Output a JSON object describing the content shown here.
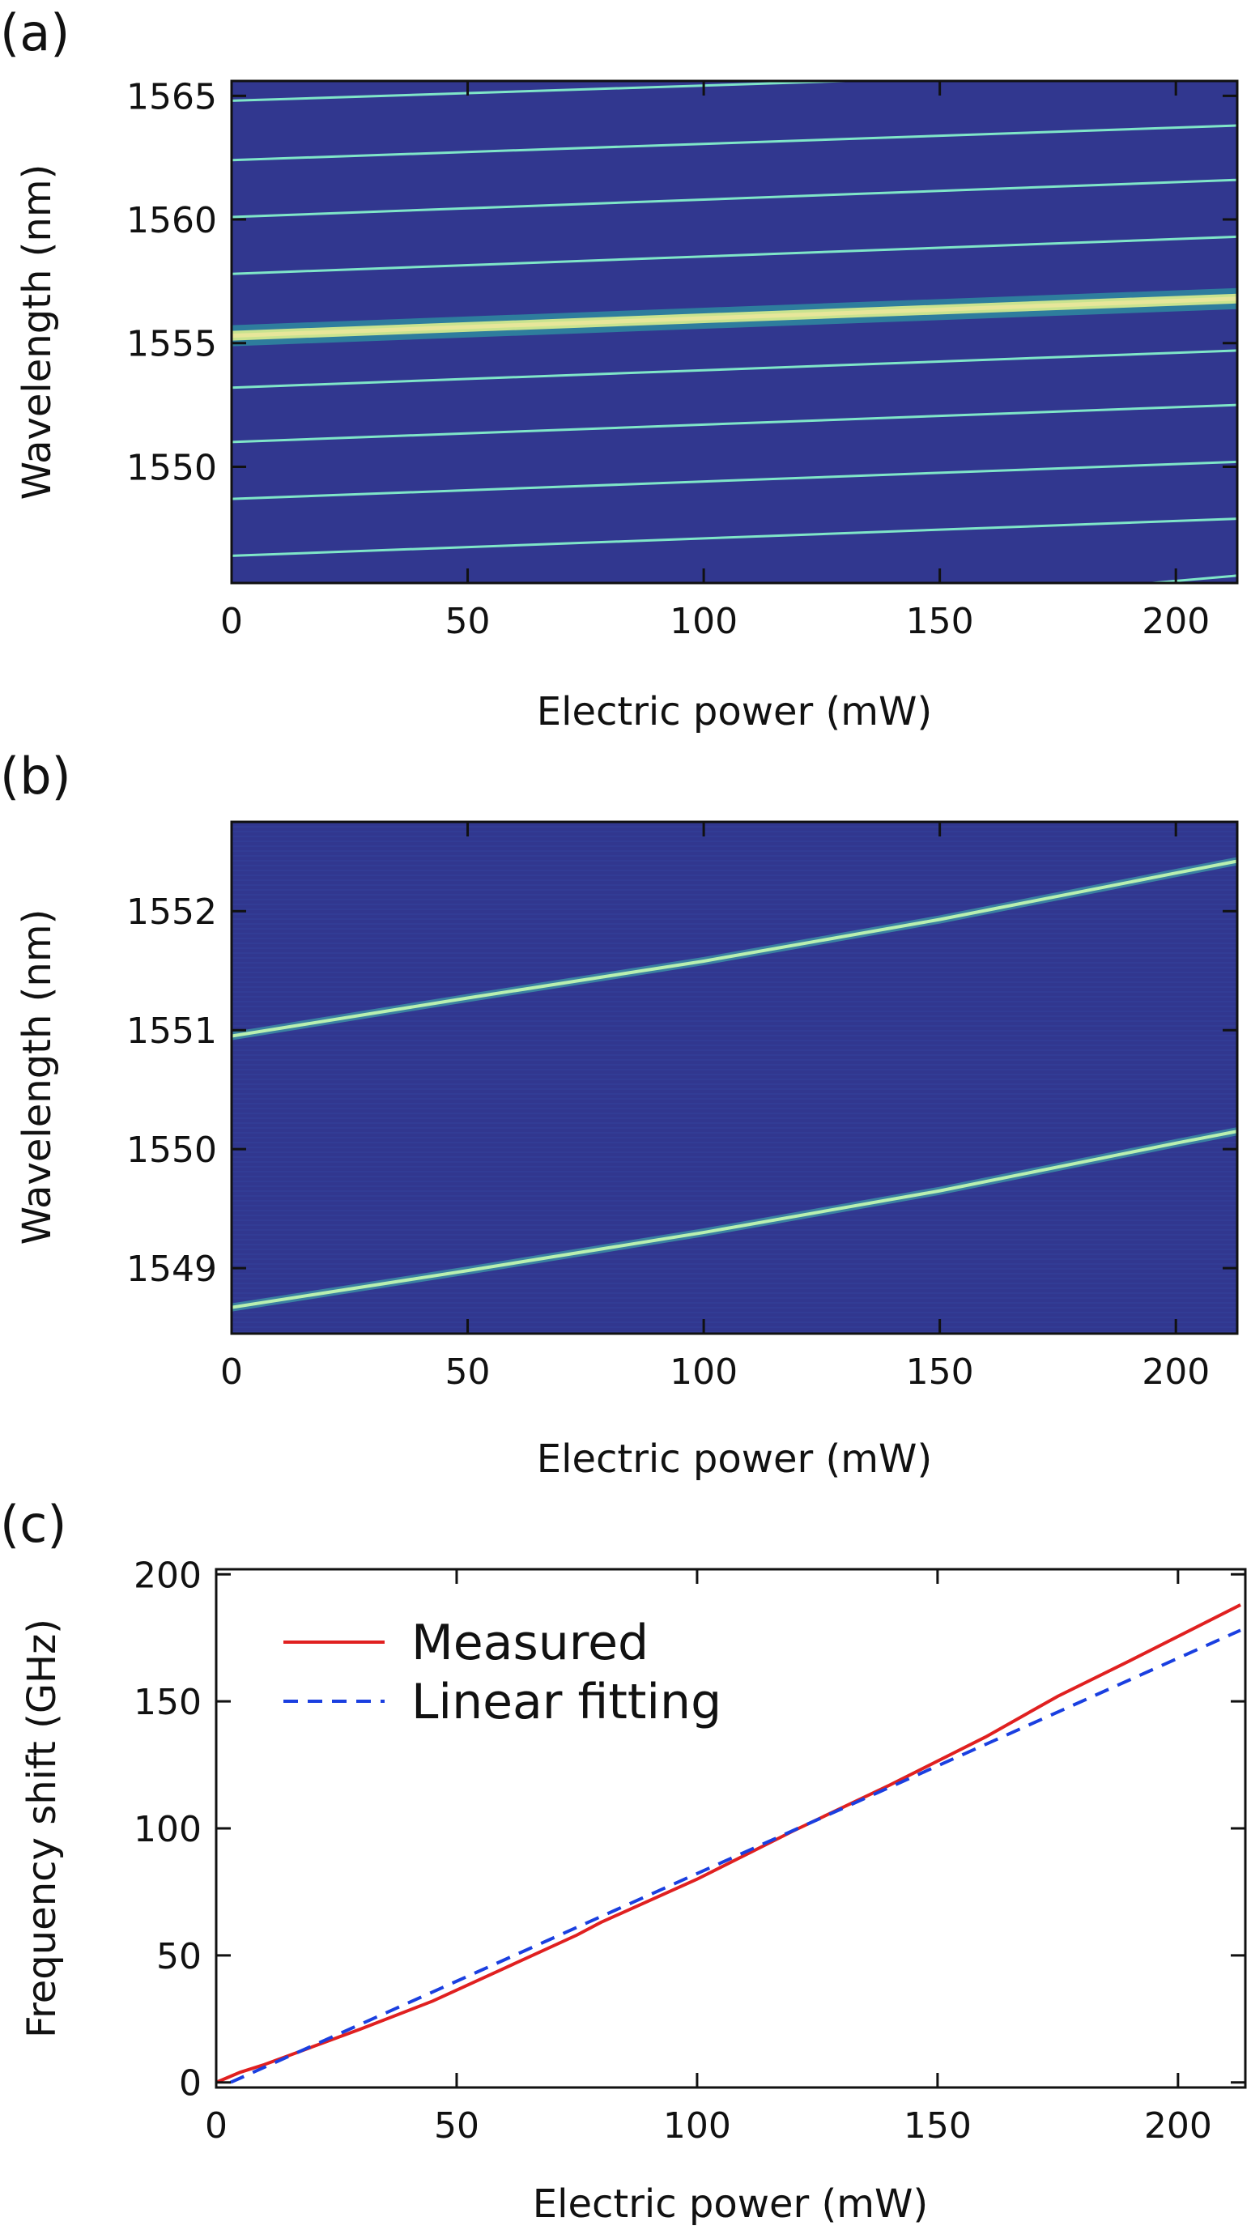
{
  "figure": {
    "panels": [
      {
        "label": "(a)"
      },
      {
        "label": "(b)"
      },
      {
        "label": "(c)"
      }
    ]
  },
  "chart_data": [
    {
      "panel": "(a)",
      "type": "heatmap",
      "xlabel": "Electric power (mW)",
      "ylabel": "Wavelength (nm)",
      "xlim": [
        0,
        213
      ],
      "ylim": [
        1545.3,
        1565.6
      ],
      "xticks": [
        "0",
        "50",
        "100",
        "150",
        "200"
      ],
      "yticks": [
        "1550",
        "1555",
        "1560",
        "1565"
      ],
      "colormap": {
        "background": "#31378f",
        "line": "#7fe6c8",
        "peak": "#c9e38f"
      },
      "lines": [
        {
          "x": [
            0,
            130
          ],
          "y": [
            1564.8,
            1565.6
          ]
        },
        {
          "x": [
            0,
            213
          ],
          "y": [
            1562.4,
            1563.8
          ]
        },
        {
          "x": [
            0,
            213
          ],
          "y": [
            1560.1,
            1561.6
          ]
        },
        {
          "x": [
            0,
            213
          ],
          "y": [
            1557.8,
            1559.3
          ]
        },
        {
          "x": [
            0,
            213
          ],
          "y": [
            1555.3,
            1556.8
          ],
          "peak": true
        },
        {
          "x": [
            0,
            213
          ],
          "y": [
            1553.2,
            1554.7
          ]
        },
        {
          "x": [
            0,
            213
          ],
          "y": [
            1551.0,
            1552.5
          ]
        },
        {
          "x": [
            0,
            213
          ],
          "y": [
            1548.7,
            1550.2
          ]
        },
        {
          "x": [
            0,
            213
          ],
          "y": [
            1546.4,
            1547.9
          ]
        },
        {
          "x": [
            195,
            213
          ],
          "y": [
            1545.3,
            1545.6
          ]
        }
      ]
    },
    {
      "panel": "(b)",
      "type": "heatmap",
      "xlabel": "Electric power (mW)",
      "ylabel": "Wavelength (nm)",
      "xlim": [
        0,
        213
      ],
      "ylim": [
        1548.45,
        1552.75
      ],
      "xticks": [
        "0",
        "50",
        "100",
        "150",
        "200"
      ],
      "yticks": [
        "1549",
        "1550",
        "1551",
        "1552"
      ],
      "colormap": {
        "background": "#31378f",
        "line": "#7fe6c8"
      },
      "lines": [
        {
          "x": [
            0,
            50,
            100,
            150,
            200,
            213
          ],
          "y": [
            1550.95,
            1551.27,
            1551.58,
            1551.93,
            1552.32,
            1552.42
          ]
        },
        {
          "x": [
            0,
            50,
            100,
            150,
            200,
            213
          ],
          "y": [
            1548.67,
            1548.98,
            1549.3,
            1549.65,
            1550.05,
            1550.15
          ]
        }
      ]
    },
    {
      "panel": "(c)",
      "type": "line",
      "xlabel": "Electric power (mW)",
      "ylabel": "Frequency shift (GHz)",
      "xlim": [
        0,
        214
      ],
      "ylim": [
        -2,
        202
      ],
      "xticks": [
        "0",
        "50",
        "100",
        "150",
        "200"
      ],
      "yticks": [
        "0",
        "50",
        "100",
        "150",
        "200"
      ],
      "legend": "top-left",
      "series": [
        {
          "name": "Measured",
          "color": "#e02020",
          "style": "solid",
          "x": [
            0,
            5,
            10,
            20,
            30,
            45,
            60,
            75,
            80,
            100,
            120,
            140,
            160,
            175,
            190,
            213
          ],
          "y": [
            0,
            4,
            7,
            14,
            21,
            32,
            45,
            58,
            63,
            80,
            99,
            117,
            136,
            152,
            166,
            188
          ]
        },
        {
          "name": "Linear fitting",
          "color": "#1a3fe0",
          "style": "dashed",
          "x": [
            3,
            213
          ],
          "y": [
            0,
            178
          ]
        }
      ]
    }
  ]
}
